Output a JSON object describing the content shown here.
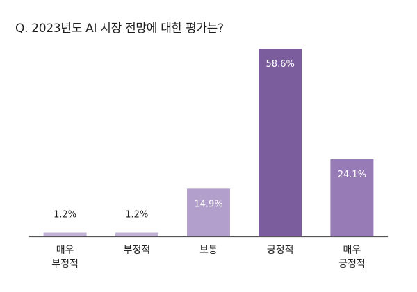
{
  "chart_data": {
    "type": "bar",
    "title": "Q. 2023년도 AI 시장 전망에 대한 평가는?",
    "categories": [
      [
        "매우",
        "부정적"
      ],
      [
        "부정적"
      ],
      [
        "보통"
      ],
      [
        "긍정적"
      ],
      [
        "매우",
        "긍정적"
      ]
    ],
    "values": [
      1.2,
      1.2,
      14.9,
      58.6,
      24.1
    ],
    "value_labels": [
      "1.2%",
      "1.2%",
      "14.9%",
      "58.6%",
      "24.1%"
    ],
    "value_unit": "%",
    "bar_colors": [
      "#c2b3d6",
      "#c2b3d6",
      "#b39fcb",
      "#7b5c9c",
      "#977bb6"
    ],
    "label_colors": [
      "#222222",
      "#222222",
      "#ffffff",
      "#ffffff",
      "#ffffff"
    ],
    "ylim": [
      0,
      58.6
    ],
    "grid": false,
    "legend": "none",
    "baseline_color": "#555555"
  }
}
